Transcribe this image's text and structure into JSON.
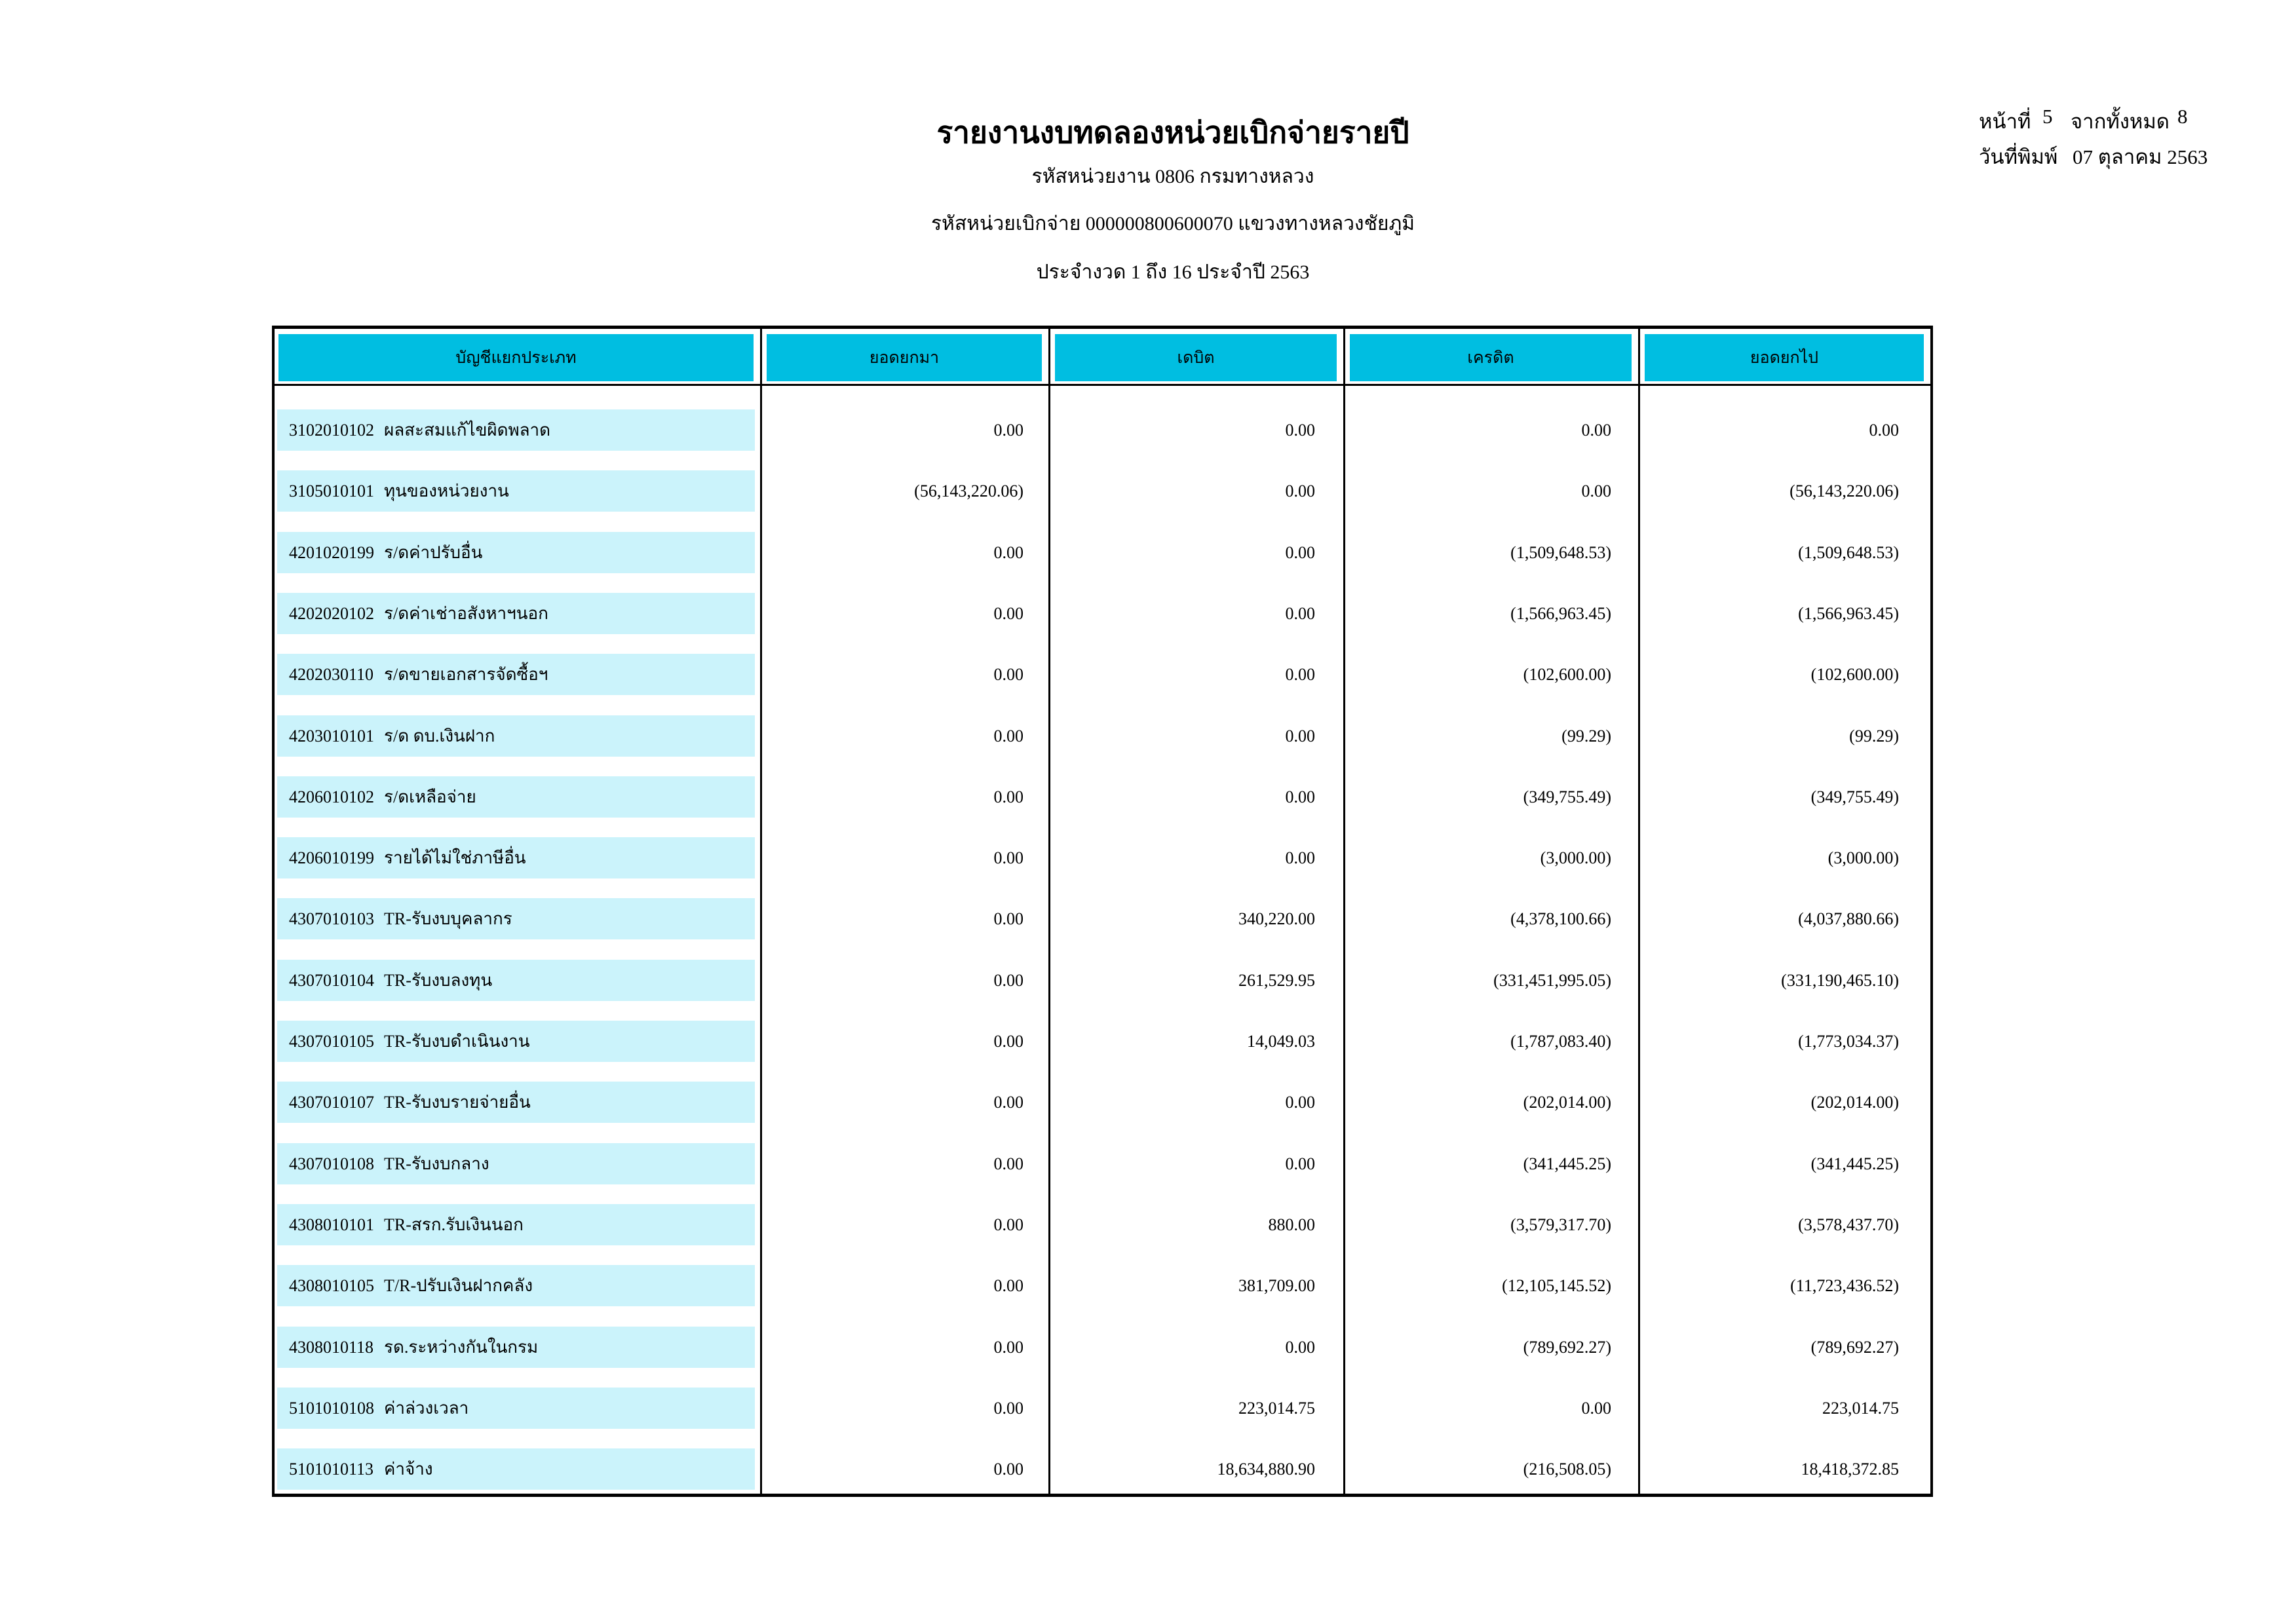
{
  "report": {
    "title": "รายงานงบทดลองหน่วยเบิกจ่ายรายปี",
    "agency_line": "รหัสหน่วยงาน 0806 กรมทางหลวง",
    "unit_line": "รหัสหน่วยเบิกจ่าย 000000800600070 แขวงทางหลวงชัยภูมิ",
    "period_line": "ประจำงวด 1 ถึง 16 ประจำปี 2563"
  },
  "page_info": {
    "page_label": "หน้าที่",
    "page_number": "5",
    "total_label": "จากทั้งหมด",
    "total_pages": "8",
    "print_date_label": "วันที่พิมพ์",
    "print_date": "07 ตุลาคม 2563"
  },
  "colors": {
    "header_bg": "#00BEE1",
    "row_bg": "#CBF3FB",
    "border": "#000000"
  },
  "table": {
    "columns": [
      "บัญชีแยกประเภท",
      "ยอดยกมา",
      "เดบิต",
      "เครดิต",
      "ยอดยกไป"
    ],
    "rows": [
      {
        "code": "3102010102",
        "name": "ผลสะสมแก้ไขผิดพลาด",
        "brought_forward": "0.00",
        "debit": "0.00",
        "credit": "0.00",
        "carried_forward": "0.00"
      },
      {
        "code": "3105010101",
        "name": "ทุนของหน่วยงาน",
        "brought_forward": "(56,143,220.06)",
        "debit": "0.00",
        "credit": "0.00",
        "carried_forward": "(56,143,220.06)"
      },
      {
        "code": "4201020199",
        "name": "ร/ดค่าปรับอื่น",
        "brought_forward": "0.00",
        "debit": "0.00",
        "credit": "(1,509,648.53)",
        "carried_forward": "(1,509,648.53)"
      },
      {
        "code": "4202020102",
        "name": "ร/ดค่าเช่าอสังหาฯนอก",
        "brought_forward": "0.00",
        "debit": "0.00",
        "credit": "(1,566,963.45)",
        "carried_forward": "(1,566,963.45)"
      },
      {
        "code": "4202030110",
        "name": "ร/ดขายเอกสารจัดซื้อฯ",
        "brought_forward": "0.00",
        "debit": "0.00",
        "credit": "(102,600.00)",
        "carried_forward": "(102,600.00)"
      },
      {
        "code": "4203010101",
        "name": "ร/ด ดบ.เงินฝาก",
        "brought_forward": "0.00",
        "debit": "0.00",
        "credit": "(99.29)",
        "carried_forward": "(99.29)"
      },
      {
        "code": "4206010102",
        "name": "ร/ดเหลือจ่าย",
        "brought_forward": "0.00",
        "debit": "0.00",
        "credit": "(349,755.49)",
        "carried_forward": "(349,755.49)"
      },
      {
        "code": "4206010199",
        "name": "รายได้ไม่ใช่ภาษีอื่น",
        "brought_forward": "0.00",
        "debit": "0.00",
        "credit": "(3,000.00)",
        "carried_forward": "(3,000.00)"
      },
      {
        "code": "4307010103",
        "name": "TR-รับงบบุคลากร",
        "brought_forward": "0.00",
        "debit": "340,220.00",
        "credit": "(4,378,100.66)",
        "carried_forward": "(4,037,880.66)"
      },
      {
        "code": "4307010104",
        "name": "TR-รับงบลงทุน",
        "brought_forward": "0.00",
        "debit": "261,529.95",
        "credit": "(331,451,995.05)",
        "carried_forward": "(331,190,465.10)"
      },
      {
        "code": "4307010105",
        "name": "TR-รับงบดำเนินงาน",
        "brought_forward": "0.00",
        "debit": "14,049.03",
        "credit": "(1,787,083.40)",
        "carried_forward": "(1,773,034.37)"
      },
      {
        "code": "4307010107",
        "name": "TR-รับงบรายจ่ายอื่น",
        "brought_forward": "0.00",
        "debit": "0.00",
        "credit": "(202,014.00)",
        "carried_forward": "(202,014.00)"
      },
      {
        "code": "4307010108",
        "name": "TR-รับงบกลาง",
        "brought_forward": "0.00",
        "debit": "0.00",
        "credit": "(341,445.25)",
        "carried_forward": "(341,445.25)"
      },
      {
        "code": "4308010101",
        "name": "TR-สรก.รับเงินนอก",
        "brought_forward": "0.00",
        "debit": "880.00",
        "credit": "(3,579,317.70)",
        "carried_forward": "(3,578,437.70)"
      },
      {
        "code": "4308010105",
        "name": "T/R-ปรับเงินฝากคลัง",
        "brought_forward": "0.00",
        "debit": "381,709.00",
        "credit": "(12,105,145.52)",
        "carried_forward": "(11,723,436.52)"
      },
      {
        "code": "4308010118",
        "name": "รด.ระหว่างกันในกรม",
        "brought_forward": "0.00",
        "debit": "0.00",
        "credit": "(789,692.27)",
        "carried_forward": "(789,692.27)"
      },
      {
        "code": "5101010108",
        "name": "ค่าล่วงเวลา",
        "brought_forward": "0.00",
        "debit": "223,014.75",
        "credit": "0.00",
        "carried_forward": "223,014.75"
      },
      {
        "code": "5101010113",
        "name": "ค่าจ้าง",
        "brought_forward": "0.00",
        "debit": "18,634,880.90",
        "credit": "(216,508.05)",
        "carried_forward": "18,418,372.85"
      }
    ]
  }
}
